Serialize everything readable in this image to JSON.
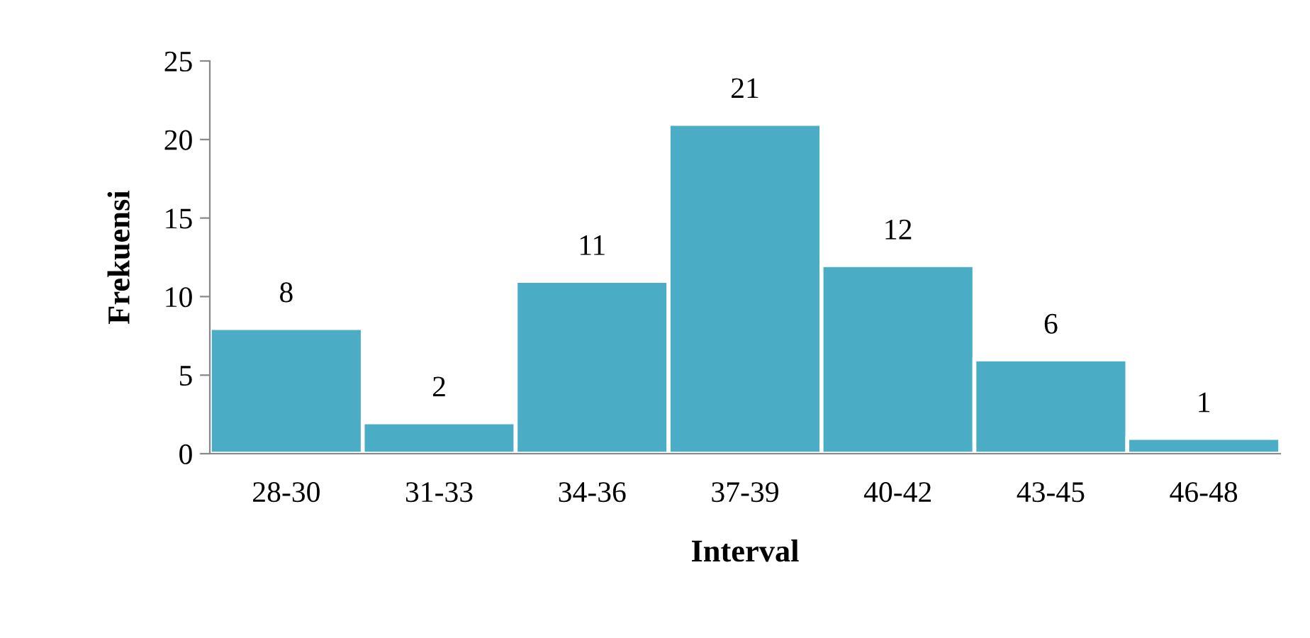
{
  "chart_data": {
    "type": "bar",
    "xlabel": "Interval",
    "ylabel": "Frekuensi",
    "categories": [
      "28-30",
      "31-33",
      "34-36",
      "37-39",
      "40-42",
      "43-45",
      "46-48"
    ],
    "values": [
      8,
      2,
      11,
      21,
      12,
      6,
      1
    ],
    "color": "#4bacc6",
    "ylim": [
      0,
      25
    ],
    "yticks": [
      0,
      5,
      10,
      15,
      20,
      25
    ],
    "grid": false,
    "data_labels": true
  }
}
